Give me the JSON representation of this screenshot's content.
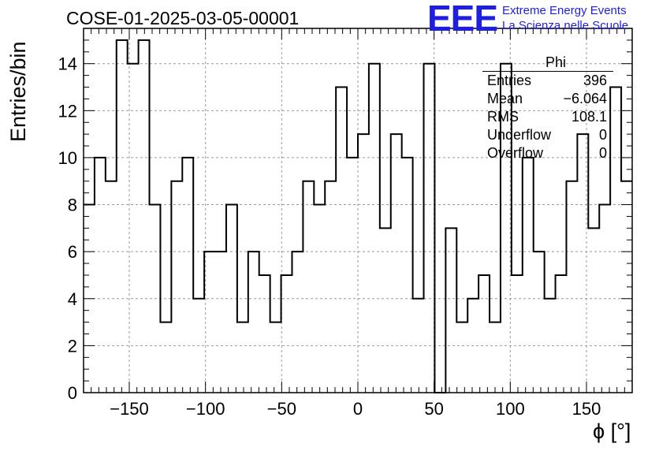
{
  "header": {
    "title": "COSE-01-2025-03-05-00001",
    "logo_text": "EEE",
    "brand_line1": "Extreme Energy Events",
    "brand_line2": "La Scienza nelle Scuole"
  },
  "stats_box": {
    "name": "Phi",
    "rows": [
      {
        "label": "Entries",
        "value": "396"
      },
      {
        "label": "Mean",
        "value": "−6.064"
      },
      {
        "label": "RMS",
        "value": "108.1"
      },
      {
        "label": "Underflow",
        "value": "0"
      },
      {
        "label": "Overflow",
        "value": "0"
      }
    ]
  },
  "colors": {
    "line": "#000000",
    "grid": "#999999",
    "logo": "#1f1fdf"
  },
  "chart_data": {
    "type": "histogram",
    "title": "COSE-01-2025-03-05-00001",
    "xlabel": "ϕ [°]",
    "ylabel": "Entries/bin",
    "xlim": [
      -180,
      180
    ],
    "ylim": [
      0,
      15.5
    ],
    "bin_width": 7.2,
    "bin_edges_start": -180,
    "xticks": [
      -150,
      -100,
      -50,
      0,
      50,
      100,
      150
    ],
    "xtick_labels": [
      "−150",
      "−100",
      "−50",
      "0",
      "50",
      "100",
      "150"
    ],
    "yticks": [
      0,
      2,
      4,
      6,
      8,
      10,
      12,
      14
    ],
    "ytick_labels": [
      "0",
      "2",
      "4",
      "6",
      "8",
      "10",
      "12",
      "14"
    ],
    "grid": true,
    "values": [
      8,
      10,
      9,
      15,
      14,
      15,
      8,
      3,
      9,
      10,
      4,
      6,
      6,
      8,
      3,
      6,
      5,
      3,
      5,
      6,
      9,
      8,
      9,
      13,
      10,
      11,
      14,
      7,
      11,
      10,
      4,
      14,
      0,
      7,
      3,
      4,
      5,
      3,
      14,
      5,
      10,
      6,
      4,
      5,
      9,
      11,
      7,
      8,
      13,
      9
    ]
  }
}
